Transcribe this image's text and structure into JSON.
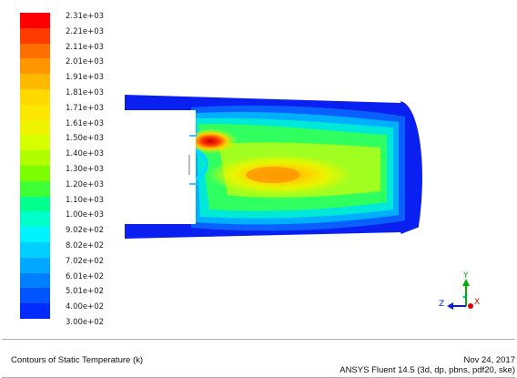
{
  "colorbar": {
    "labels": [
      "2.31e+03",
      "2.21e+03",
      "2.11e+03",
      "2.01e+03",
      "1.91e+03",
      "1.81e+03",
      "1.71e+03",
      "1.61e+03",
      "1.50e+03",
      "1.40e+03",
      "1.30e+03",
      "1.20e+03",
      "1.10e+03",
      "1.00e+03",
      "9.02e+02",
      "8.02e+02",
      "7.02e+02",
      "6.01e+02",
      "5.01e+02",
      "4.00e+02",
      "3.00e+02"
    ],
    "colors": [
      "#ff0000",
      "#ff3b00",
      "#ff6f00",
      "#ff9600",
      "#ffb900",
      "#ffd900",
      "#fbe700",
      "#edf300",
      "#d6ff00",
      "#b0ff00",
      "#7dff00",
      "#3fff36",
      "#00ff8c",
      "#00ffc9",
      "#00f3ff",
      "#00cfff",
      "#00a8ff",
      "#0080ff",
      "#0055ff",
      "#002bff"
    ]
  },
  "axes": {
    "x": "X",
    "y": "Y",
    "z": "Z"
  },
  "footer": {
    "title": "Contours of Static Temperature (k)",
    "date": "Nov 24, 2017",
    "version": "ANSYS Fluent 14.5 (3d, dp, pbns, pdf20, ske)"
  }
}
